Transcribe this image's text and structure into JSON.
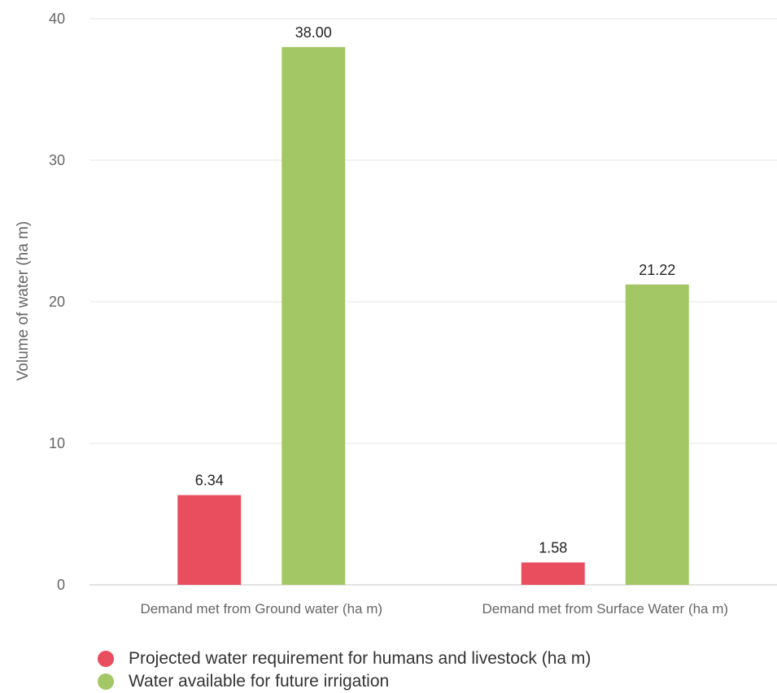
{
  "chart_data": {
    "type": "bar",
    "title": "",
    "xlabel": "",
    "ylabel": "Volume of water (ha m)",
    "categories": [
      "Demand met from Ground water (ha m)",
      "Demand met from Surface Water (ha m)"
    ],
    "series": [
      {
        "name": "Projected water requirement for humans and livestock (ha m)",
        "values": [
          6.34,
          1.58
        ],
        "labels": [
          "6.34",
          "1.58"
        ],
        "color": "#e94e5f"
      },
      {
        "name": "Water available for future irrigation",
        "values": [
          38.0,
          21.22
        ],
        "labels": [
          "38.00",
          "21.22"
        ],
        "color": "#a3c765"
      }
    ],
    "ylim": [
      0,
      40
    ],
    "yticks": [
      0,
      10,
      20,
      30,
      40
    ],
    "ytick_labels": [
      "0",
      "10",
      "20",
      "30",
      "40"
    ],
    "grid": true,
    "legend_position": "bottom-left",
    "colors": {
      "grid": "#e6e6e6",
      "baseline": "#d9d9d9"
    }
  }
}
